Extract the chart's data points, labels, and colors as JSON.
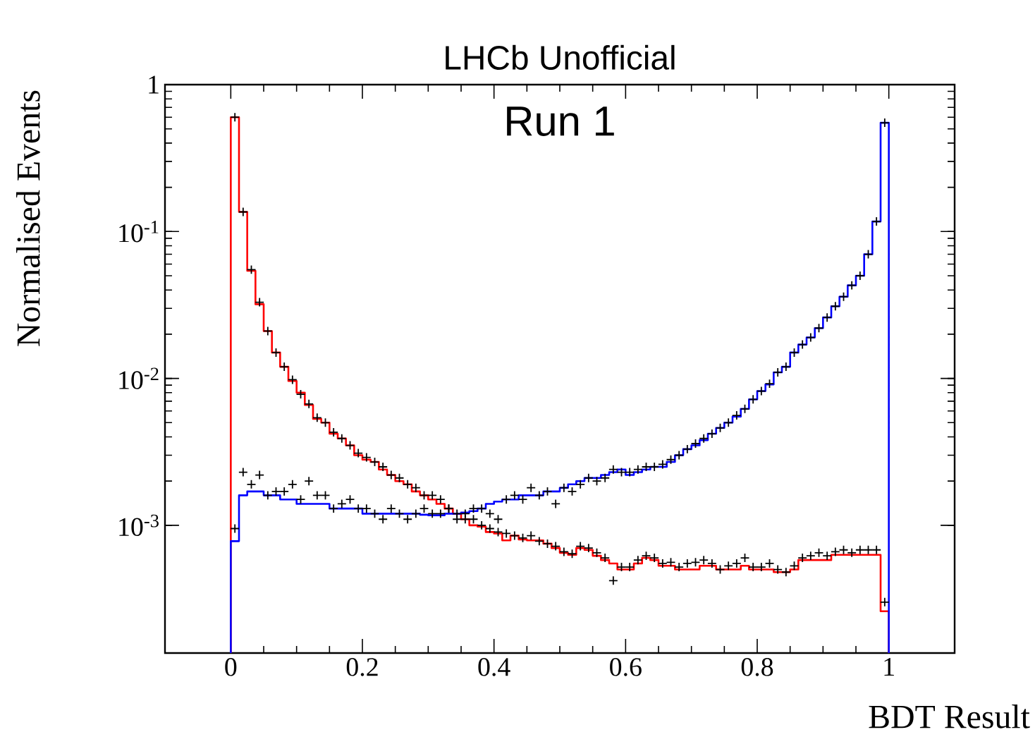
{
  "chart_data": {
    "type": "histogram",
    "title": "LHCb Unofficial",
    "xlabel": "BDT Result",
    "ylabel": "Normalised Events",
    "annotations": [
      "Run 1"
    ],
    "log": "y",
    "grid": false,
    "xlim": [
      -0.1,
      1.1
    ],
    "ylim": [
      0.000135,
      1
    ],
    "xticks": [
      0,
      0.2,
      0.4,
      0.6,
      0.8,
      1
    ],
    "yticks": [
      {
        "value": 0.001,
        "label": "10$^{-3}$"
      },
      {
        "value": 0.01,
        "label": "10$^{-2}$"
      },
      {
        "value": 0.1,
        "label": "10$^{-1}$"
      },
      1
    ],
    "bins": [
      0,
      0.0125,
      0.025,
      0.0375,
      0.05,
      0.0625,
      0.075,
      0.0875,
      0.1,
      0.1125,
      0.125,
      0.1375,
      0.15,
      0.1625,
      0.175,
      0.1875,
      0.2,
      0.2125,
      0.225,
      0.2375,
      0.25,
      0.2625,
      0.275,
      0.2875,
      0.3,
      0.3125,
      0.325,
      0.3375,
      0.35,
      0.3625,
      0.375,
      0.3875,
      0.4,
      0.4125,
      0.425,
      0.4375,
      0.45,
      0.4625,
      0.475,
      0.4875,
      0.5,
      0.5125,
      0.525,
      0.5375,
      0.55,
      0.5625,
      0.575,
      0.5875,
      0.6,
      0.6125,
      0.625,
      0.6375,
      0.65,
      0.6625,
      0.675,
      0.6875,
      0.7,
      0.7125,
      0.725,
      0.7375,
      0.75,
      0.7625,
      0.775,
      0.7875,
      0.8,
      0.8125,
      0.825,
      0.8375,
      0.85,
      0.8625,
      0.875,
      0.8875,
      0.9,
      0.9125,
      0.925,
      0.9375,
      0.95,
      0.9625,
      0.975,
      0.9875,
      1
    ],
    "series": [
      {
        "color": "#ff0000",
        "values": [
          0.6,
          0.136,
          0.054,
          0.032,
          0.021,
          0.015,
          0.012,
          0.0096,
          0.008,
          0.0066,
          0.0053,
          0.005,
          0.0042,
          0.0039,
          0.0035,
          0.003,
          0.0028,
          0.0027,
          0.0024,
          0.0022,
          0.002,
          0.0019,
          0.0017,
          0.0016,
          0.0015,
          0.0014,
          0.0013,
          0.0012,
          0.0011,
          0.001,
          0.00098,
          0.0009,
          0.00088,
          0.00079,
          0.00085,
          0.0008,
          0.00079,
          0.00079,
          0.00075,
          0.0007,
          0.00065,
          0.00063,
          0.0007,
          0.00068,
          0.00062,
          0.00058,
          0.00055,
          0.0005,
          0.0005,
          0.00055,
          0.0006,
          0.00058,
          0.00053,
          0.00053,
          0.0005,
          0.0005,
          0.0005,
          0.00053,
          0.00053,
          0.0005,
          0.0005,
          0.0005,
          0.00053,
          0.0005,
          0.0005,
          0.0005,
          0.00048,
          0.00048,
          0.0005,
          0.00058,
          0.00058,
          0.00058,
          0.00058,
          0.00063,
          0.00063,
          0.00063,
          0.00063,
          0.00063,
          0.00063,
          0.00026
        ]
      },
      {
        "color": "#0000ff",
        "values": [
          0.00078,
          0.0016,
          0.0017,
          0.0017,
          0.0016,
          0.0016,
          0.0015,
          0.0015,
          0.0014,
          0.0014,
          0.0014,
          0.0014,
          0.0013,
          0.0013,
          0.0013,
          0.0013,
          0.0012,
          0.0012,
          0.0012,
          0.0012,
          0.0012,
          0.0012,
          0.0012,
          0.00118,
          0.00117,
          0.00117,
          0.0012,
          0.0012,
          0.00122,
          0.00125,
          0.0013,
          0.0014,
          0.00145,
          0.0015,
          0.0015,
          0.0016,
          0.0016,
          0.0016,
          0.0017,
          0.0017,
          0.0018,
          0.0019,
          0.002,
          0.0021,
          0.0021,
          0.0022,
          0.0023,
          0.0024,
          0.0022,
          0.0023,
          0.0024,
          0.0025,
          0.0025,
          0.0027,
          0.003,
          0.0033,
          0.0035,
          0.0038,
          0.0042,
          0.0046,
          0.005,
          0.0055,
          0.0062,
          0.0072,
          0.0082,
          0.0091,
          0.011,
          0.012,
          0.015,
          0.017,
          0.019,
          0.022,
          0.026,
          0.031,
          0.036,
          0.043,
          0.05,
          0.07,
          0.117,
          0.55
        ]
      },
      {
        "type": "scatter",
        "marker": "cross",
        "color": "#000000",
        "x": [
          0.00625,
          0.01875,
          0.03125,
          0.04375,
          0.05625,
          0.06875,
          0.08125,
          0.09375,
          0.10625,
          0.11875,
          0.13125,
          0.14375,
          0.15625,
          0.16875,
          0.18125,
          0.19375,
          0.20625,
          0.21875,
          0.23125,
          0.24375,
          0.25625,
          0.26875,
          0.28125,
          0.29375,
          0.30625,
          0.31875,
          0.33125,
          0.34375,
          0.35625,
          0.36875,
          0.38125,
          0.39375,
          0.40625,
          0.41875,
          0.43125,
          0.44375,
          0.45625,
          0.46875,
          0.48125,
          0.49375,
          0.50625,
          0.51875,
          0.53125,
          0.54375,
          0.55625,
          0.56875,
          0.58125,
          0.59375,
          0.60625,
          0.61875,
          0.63125,
          0.64375,
          0.65625,
          0.66875,
          0.68125,
          0.69375,
          0.70625,
          0.71875,
          0.73125,
          0.74375,
          0.75625,
          0.76875,
          0.78125,
          0.79375,
          0.80625,
          0.81875,
          0.83125,
          0.84375,
          0.85625,
          0.86875,
          0.88125,
          0.89375,
          0.90625,
          0.91875,
          0.93125,
          0.94375,
          0.95625,
          0.96875,
          0.98125,
          0.99375
        ],
        "values": [
          0.6,
          0.136,
          0.055,
          0.033,
          0.021,
          0.015,
          0.012,
          0.0098,
          0.0078,
          0.0067,
          0.0054,
          0.005,
          0.0043,
          0.0039,
          0.0035,
          0.0031,
          0.0029,
          0.0027,
          0.0025,
          0.0022,
          0.0021,
          0.0019,
          0.0018,
          0.0016,
          0.0016,
          0.0015,
          0.0013,
          0.0012,
          0.0011,
          0.0011,
          0.001,
          0.00095,
          0.0009,
          0.00088,
          0.00085,
          0.00082,
          0.00085,
          0.00078,
          0.00075,
          0.00072,
          0.00066,
          0.00064,
          0.00072,
          0.0007,
          0.00065,
          0.0006,
          0.00042,
          0.00052,
          0.00052,
          0.00058,
          0.00062,
          0.0006,
          0.00055,
          0.00056,
          0.00052,
          0.00055,
          0.00056,
          0.00058,
          0.00055,
          0.0005,
          0.00053,
          0.00055,
          0.0006,
          0.00052,
          0.00052,
          0.00055,
          0.0005,
          0.00048,
          0.00053,
          0.0006,
          0.00062,
          0.00065,
          0.00062,
          0.00066,
          0.00068,
          0.00065,
          0.00068,
          0.00068,
          0.00068,
          0.0003
        ]
      },
      {
        "type": "scatter",
        "marker": "cross",
        "color": "#000000",
        "x": [
          0.00625,
          0.01875,
          0.03125,
          0.04375,
          0.05625,
          0.06875,
          0.08125,
          0.09375,
          0.10625,
          0.11875,
          0.13125,
          0.14375,
          0.15625,
          0.16875,
          0.18125,
          0.19375,
          0.20625,
          0.21875,
          0.23125,
          0.24375,
          0.25625,
          0.26875,
          0.28125,
          0.29375,
          0.30625,
          0.31875,
          0.33125,
          0.34375,
          0.35625,
          0.36875,
          0.38125,
          0.39375,
          0.40625,
          0.41875,
          0.43125,
          0.44375,
          0.45625,
          0.46875,
          0.48125,
          0.49375,
          0.50625,
          0.51875,
          0.53125,
          0.54375,
          0.55625,
          0.56875,
          0.58125,
          0.59375,
          0.60625,
          0.61875,
          0.63125,
          0.64375,
          0.65625,
          0.66875,
          0.68125,
          0.69375,
          0.70625,
          0.71875,
          0.73125,
          0.74375,
          0.75625,
          0.76875,
          0.78125,
          0.79375,
          0.80625,
          0.81875,
          0.83125,
          0.84375,
          0.85625,
          0.86875,
          0.88125,
          0.89375,
          0.90625,
          0.91875,
          0.93125,
          0.94375,
          0.95625,
          0.96875,
          0.98125,
          0.99375
        ],
        "values": [
          0.00095,
          0.0023,
          0.0019,
          0.0022,
          0.0016,
          0.0017,
          0.0017,
          0.0019,
          0.0015,
          0.002,
          0.0016,
          0.0016,
          0.0013,
          0.0014,
          0.0015,
          0.0013,
          0.0013,
          0.0012,
          0.0011,
          0.0013,
          0.0012,
          0.0011,
          0.0012,
          0.0013,
          0.0012,
          0.0012,
          0.0013,
          0.0011,
          0.0012,
          0.0013,
          0.0013,
          0.0012,
          0.0011,
          0.0015,
          0.0016,
          0.0015,
          0.0018,
          0.0016,
          0.0017,
          0.0014,
          0.0018,
          0.0017,
          0.0019,
          0.0021,
          0.002,
          0.0021,
          0.0024,
          0.0023,
          0.0023,
          0.0024,
          0.0025,
          0.0025,
          0.0026,
          0.0028,
          0.003,
          0.0033,
          0.0036,
          0.0039,
          0.0042,
          0.0046,
          0.005,
          0.0056,
          0.0062,
          0.0072,
          0.0082,
          0.0092,
          0.011,
          0.012,
          0.015,
          0.017,
          0.019,
          0.022,
          0.026,
          0.031,
          0.036,
          0.043,
          0.05,
          0.07,
          0.117,
          0.55
        ]
      }
    ]
  }
}
